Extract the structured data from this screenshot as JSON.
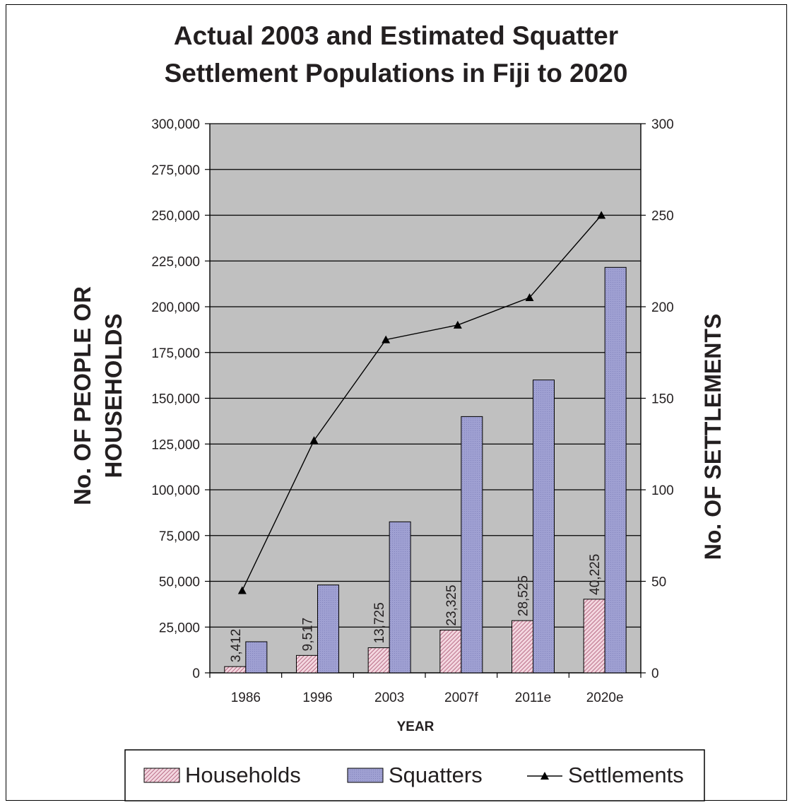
{
  "chart_data": {
    "type": "bar",
    "title_line1": "Actual 2003 and Estimated Squatter",
    "title_line2": "Settlement Populations in Fiji to 2020",
    "xlabel": "YEAR",
    "ylabel_left_line1": "No. OF PEOPLE OR",
    "ylabel_left_line2": "HOUSEHOLDS",
    "ylabel_right": "No. OF SETTLEMENTS",
    "categories": [
      "1986",
      "1996",
      "2003",
      "2007f",
      "2011e",
      "2020e"
    ],
    "ylim_left": [
      0,
      300000
    ],
    "ylim_right": [
      0,
      300
    ],
    "yticks_left": [
      "0",
      "25,000",
      "50,000",
      "75,000",
      "100,000",
      "125,000",
      "150,000",
      "175,000",
      "200,000",
      "225,000",
      "250,000",
      "275,000",
      "300,000"
    ],
    "yticks_right": [
      "0",
      "50",
      "100",
      "150",
      "200",
      "250",
      "300"
    ],
    "grid": true,
    "legend_position": "bottom",
    "series": [
      {
        "name": "Households",
        "type": "bar",
        "axis": "left",
        "color": "#e8b4c4",
        "stroke": "#8a2b4a",
        "values": [
          3412,
          9517,
          13725,
          23325,
          28525,
          40225
        ],
        "labels": [
          "3,412",
          "9,517",
          "13,725",
          "23,325",
          "28,525",
          "40,225"
        ]
      },
      {
        "name": "Squatters",
        "type": "bar",
        "axis": "right_scaled",
        "color": "#9999cc",
        "stroke": "#000000",
        "values": [
          17000,
          48000,
          82500,
          140000,
          160000,
          221500
        ]
      },
      {
        "name": "Settlements",
        "type": "line",
        "axis": "right",
        "color": "#000000",
        "marker": "triangle",
        "values": [
          45,
          127,
          182,
          190,
          205,
          250
        ]
      }
    ],
    "plot_background": "#c0c0c0"
  }
}
